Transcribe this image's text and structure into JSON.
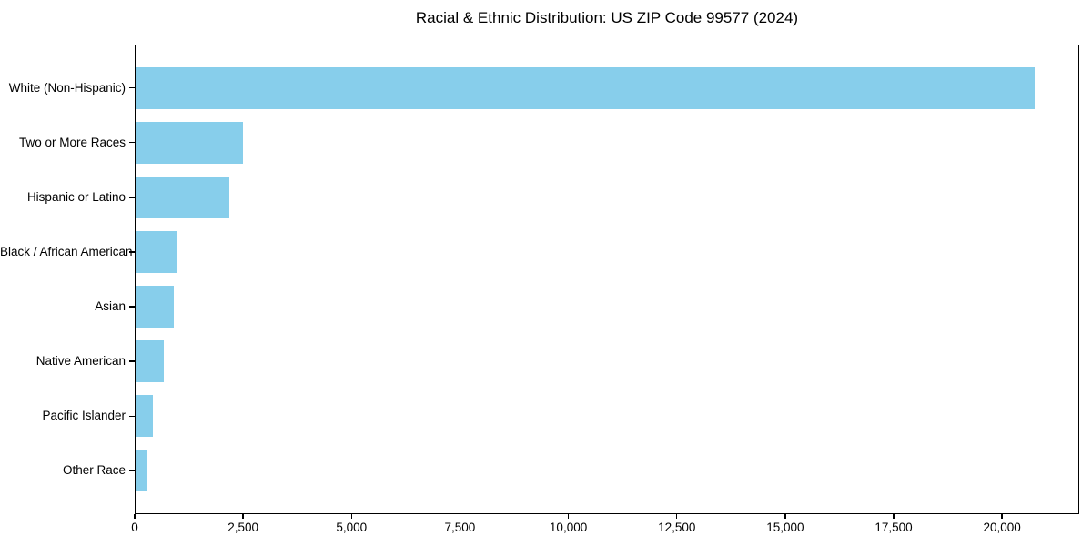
{
  "chart_data": {
    "type": "bar",
    "orientation": "horizontal",
    "title": "Racial & Ethnic Distribution: US ZIP Code 99577 (2024)",
    "categories": [
      "White (Non-Hispanic)",
      "Two or More Races",
      "Hispanic or Latino",
      "Black / African American",
      "Asian",
      "Native American",
      "Pacific Islander",
      "Other Race"
    ],
    "values": [
      20730,
      2480,
      2160,
      970,
      880,
      655,
      390,
      250
    ],
    "xlabel": "",
    "ylabel": "",
    "xlim": [
      0,
      21780
    ],
    "x_ticks": [
      0,
      2500,
      5000,
      7500,
      10000,
      12500,
      15000,
      17500,
      20000
    ],
    "x_tick_labels": [
      "0",
      "2,500",
      "5,000",
      "7,500",
      "10,000",
      "12,500",
      "15,000",
      "17,500",
      "20,000"
    ],
    "bar_color": "#87CEEB",
    "text_color": "#000000",
    "grid": false,
    "legend": false
  }
}
